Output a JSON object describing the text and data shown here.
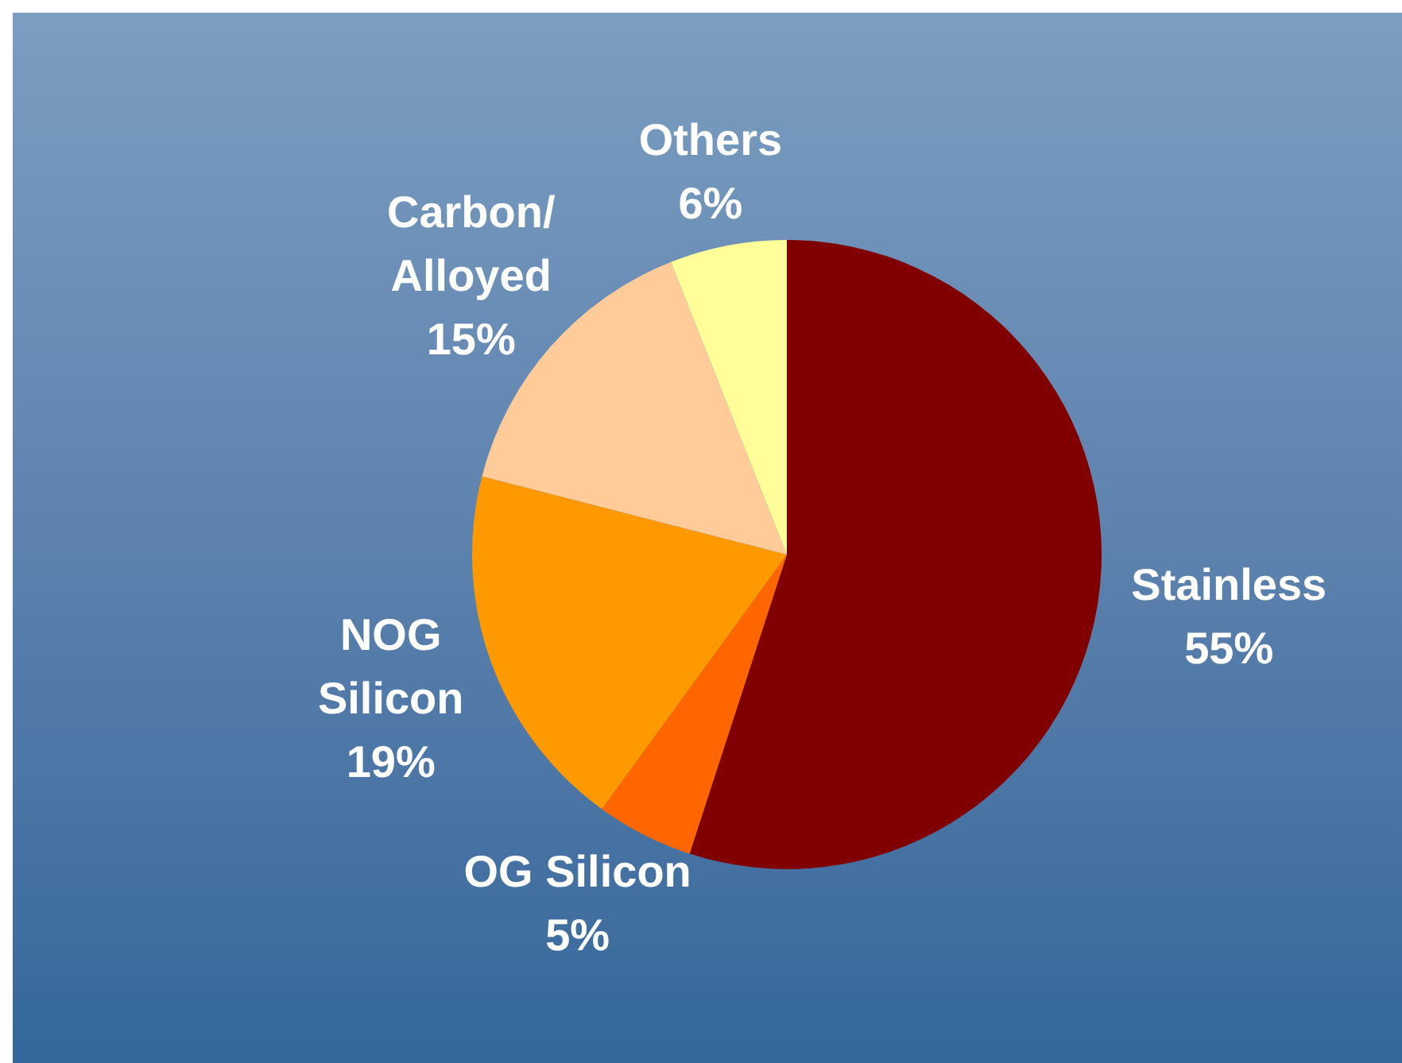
{
  "chart_data": {
    "type": "pie",
    "categories": [
      "Stainless",
      "OG Silicon",
      "NOG Silicon",
      "Carbon/Alloyed",
      "Others"
    ],
    "values": [
      55,
      5,
      19,
      15,
      6
    ],
    "colors": [
      "#800000",
      "#ff6600",
      "#ff9900",
      "#ffcc99",
      "#ffff99"
    ],
    "value_labels": [
      "55%",
      "5%",
      "19%",
      "15%",
      "6%"
    ]
  }
}
